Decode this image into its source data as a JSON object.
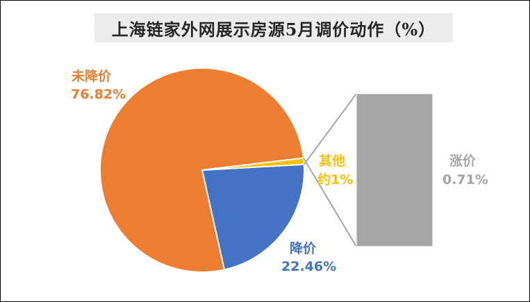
{
  "colors": {
    "not_reduced": "#ED7D31",
    "reduced": "#4472C4",
    "other": "#FFC000",
    "raised": "#A5A5A5",
    "connector": "#A5A5A5"
  },
  "chart_data": {
    "type": "pie",
    "title": "上海链家外网展示房源5月调价动作（%）",
    "slices": [
      {
        "label": "未降价",
        "value": 76.82,
        "value_label": "76.82%",
        "color": "#ED7D31"
      },
      {
        "label": "降价",
        "value": 22.46,
        "value_label": "22.46%",
        "color": "#4472C4"
      },
      {
        "label": "其他",
        "value": 1,
        "value_label": "约1%",
        "color": "#FFC000"
      }
    ],
    "breakout": {
      "type": "bar-of-pie",
      "from_slice": "其他",
      "segments": [
        {
          "label": "涨价",
          "value": 0.71,
          "value_label": "0.71%",
          "color": "#A5A5A5"
        }
      ]
    }
  }
}
